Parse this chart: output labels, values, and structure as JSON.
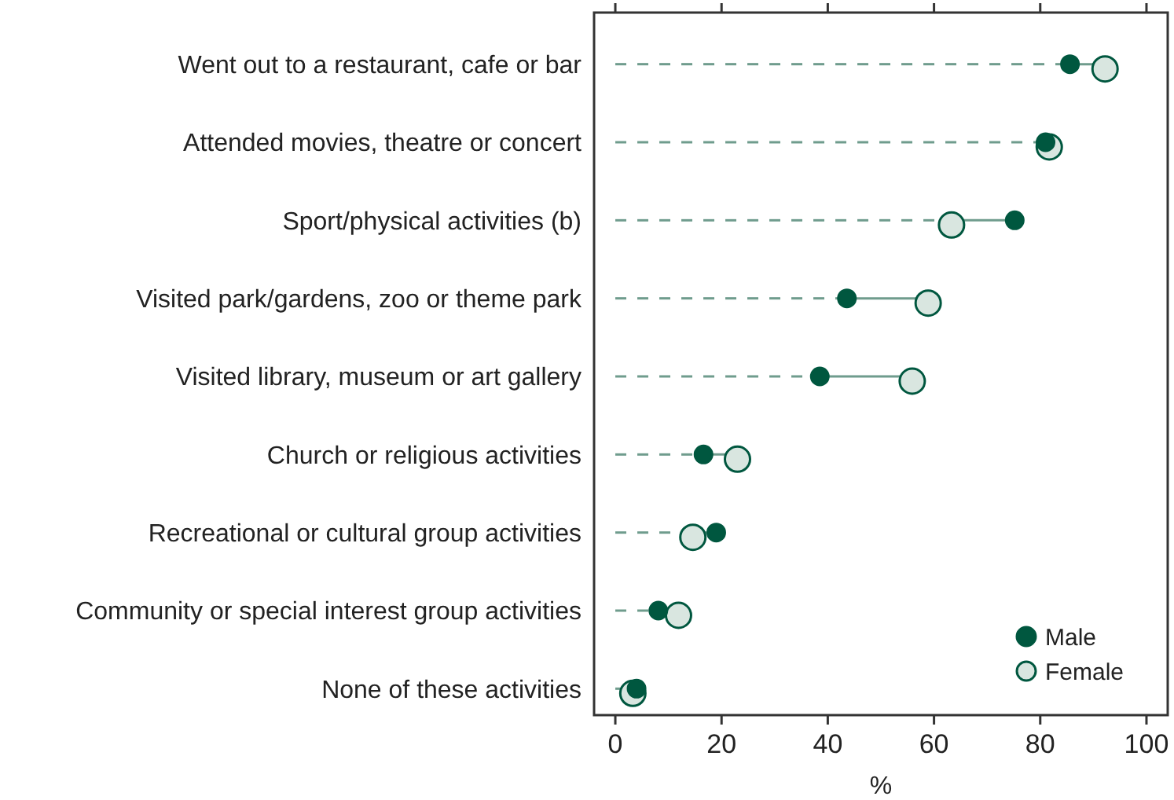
{
  "chart_data": {
    "type": "scatter",
    "orientation": "horizontal",
    "xlabel": "%",
    "categories": [
      "Went out to a restaurant, cafe or bar",
      "Attended movies, theatre or concert",
      "Sport/physical activities (b)",
      "Visited park/gardens, zoo or theme park",
      "Visited library, museum or art gallery",
      "Church or religious activities",
      "Recreational or cultural group activities",
      "Community or special interest group activities",
      "None of these activities"
    ],
    "series": [
      {
        "name": "Male",
        "color": "#00573f",
        "values": [
          85.6,
          81.0,
          75.2,
          43.6,
          38.5,
          16.6,
          19.0,
          8.1,
          4.0
        ]
      },
      {
        "name": "Female",
        "color": "#d9e6e0",
        "values": [
          92.2,
          81.7,
          63.3,
          58.9,
          55.9,
          23.0,
          14.6,
          11.9,
          3.3
        ]
      }
    ],
    "xlim": [
      -4,
      104
    ],
    "xticks": [
      0,
      20,
      40,
      60,
      80,
      100
    ],
    "legend": "bottom right",
    "marker": "circle"
  }
}
